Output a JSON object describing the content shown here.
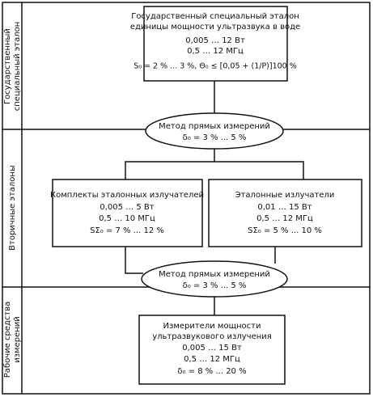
{
  "sections": [
    {
      "lines": [
        "Государственный",
        "специальный эталон"
      ]
    },
    {
      "lines": [
        "Вторичные эталоны"
      ]
    },
    {
      "lines": [
        "Рабочие средства",
        "измерений"
      ]
    }
  ],
  "nodes": [
    {
      "lines": [
        "Государственный специальный эталон",
        "единицы мощности ультразвука в воде",
        "0,005 … 12 Вт",
        "0,5 … 12 МГц",
        "S₀ = 2 % ... 3 %, Θ₀ ≤ [0,05 + (1/P)]100 %"
      ]
    },
    {
      "lines": [
        "Метод прямых измерений",
        "δ₀ = 3 % ... 5 %"
      ]
    },
    {
      "lines": [
        "Комплекты эталонных излучателей",
        "0,005 … 5 Вт",
        "0,5 … 10 МГц",
        "SΣ₀ = 7 % ... 12 %"
      ]
    },
    {
      "lines": [
        "Эталонные излучатели",
        "0,01 … 15 Вт",
        "0,5 … 12 МГц",
        "SΣ₀ = 5 % ... 10 %"
      ]
    },
    {
      "lines": [
        "Метод прямых измерений",
        "δ₀ = 3 % ... 5 %"
      ]
    },
    {
      "lines": [
        "Измерители мощности",
        "ультразвукового излучения",
        "0,005 … 15 Вт",
        "0,5 … 12 МГц",
        "δ₀ = 8 % ... 20 %"
      ]
    }
  ]
}
